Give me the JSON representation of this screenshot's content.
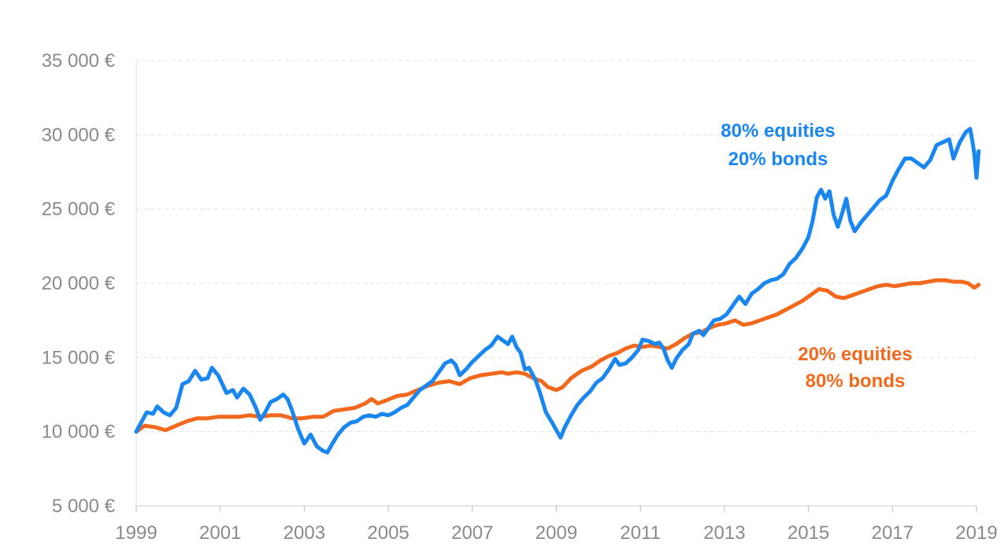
{
  "chart_data": {
    "type": "line",
    "title": "",
    "xlabel": "",
    "ylabel": "",
    "xlim": [
      1999,
      2019
    ],
    "ylim": [
      5000,
      35000
    ],
    "y_ticks": [
      5000,
      10000,
      15000,
      20000,
      25000,
      30000,
      35000
    ],
    "y_tick_labels": [
      "5 000 €",
      "10 000 €",
      "15 000 €",
      "20 000 €",
      "25 000 €",
      "30 000 €",
      "35 000 €"
    ],
    "x_ticks": [
      1999,
      2001,
      2003,
      2005,
      2007,
      2009,
      2011,
      2013,
      2015,
      2017,
      2019
    ],
    "x_tick_labels": [
      "1999",
      "2001",
      "2003",
      "2005",
      "2007",
      "2009",
      "2011",
      "2013",
      "2015",
      "2017",
      "2019"
    ],
    "grid": "horizontal dashed",
    "series": [
      {
        "label_lines": [
          "80% equities",
          "20% bonds"
        ],
        "color": "#1a86f0",
        "points": [
          [
            1999.0,
            10000
          ],
          [
            1999.25,
            11300
          ],
          [
            1999.4,
            11200
          ],
          [
            1999.5,
            11700
          ],
          [
            1999.65,
            11300
          ],
          [
            1999.8,
            11100
          ],
          [
            1999.95,
            11600
          ],
          [
            2000.1,
            13200
          ],
          [
            2000.25,
            13400
          ],
          [
            2000.4,
            14100
          ],
          [
            2000.55,
            13500
          ],
          [
            2000.7,
            13600
          ],
          [
            2000.8,
            14300
          ],
          [
            2000.95,
            13800
          ],
          [
            2001.05,
            13200
          ],
          [
            2001.15,
            12600
          ],
          [
            2001.3,
            12800
          ],
          [
            2001.4,
            12300
          ],
          [
            2001.55,
            12900
          ],
          [
            2001.7,
            12500
          ],
          [
            2001.85,
            11600
          ],
          [
            2001.95,
            10800
          ],
          [
            2002.05,
            11200
          ],
          [
            2002.2,
            12000
          ],
          [
            2002.35,
            12200
          ],
          [
            2002.5,
            12500
          ],
          [
            2002.6,
            12200
          ],
          [
            2002.7,
            11500
          ],
          [
            2002.85,
            10200
          ],
          [
            2003.0,
            9200
          ],
          [
            2003.15,
            9800
          ],
          [
            2003.3,
            9000
          ],
          [
            2003.45,
            8700
          ],
          [
            2003.55,
            8600
          ],
          [
            2003.65,
            9100
          ],
          [
            2003.8,
            9800
          ],
          [
            2003.95,
            10300
          ],
          [
            2004.1,
            10600
          ],
          [
            2004.25,
            10700
          ],
          [
            2004.4,
            11000
          ],
          [
            2004.55,
            11100
          ],
          [
            2004.7,
            11000
          ],
          [
            2004.85,
            11200
          ],
          [
            2005.0,
            11100
          ],
          [
            2005.15,
            11300
          ],
          [
            2005.3,
            11600
          ],
          [
            2005.45,
            11800
          ],
          [
            2005.6,
            12300
          ],
          [
            2005.75,
            12800
          ],
          [
            2005.9,
            13100
          ],
          [
            2006.05,
            13400
          ],
          [
            2006.2,
            14000
          ],
          [
            2006.35,
            14600
          ],
          [
            2006.5,
            14800
          ],
          [
            2006.6,
            14500
          ],
          [
            2006.7,
            13800
          ],
          [
            2006.85,
            14200
          ],
          [
            2007.0,
            14700
          ],
          [
            2007.15,
            15100
          ],
          [
            2007.3,
            15500
          ],
          [
            2007.45,
            15800
          ],
          [
            2007.6,
            16400
          ],
          [
            2007.7,
            16200
          ],
          [
            2007.85,
            15900
          ],
          [
            2007.95,
            16400
          ],
          [
            2008.05,
            15700
          ],
          [
            2008.15,
            15300
          ],
          [
            2008.25,
            14200
          ],
          [
            2008.35,
            14300
          ],
          [
            2008.5,
            13500
          ],
          [
            2008.6,
            12700
          ],
          [
            2008.75,
            11300
          ],
          [
            2008.9,
            10600
          ],
          [
            2009.0,
            10100
          ],
          [
            2009.1,
            9600
          ],
          [
            2009.2,
            10300
          ],
          [
            2009.35,
            11100
          ],
          [
            2009.5,
            11800
          ],
          [
            2009.65,
            12300
          ],
          [
            2009.8,
            12700
          ],
          [
            2009.95,
            13300
          ],
          [
            2010.1,
            13600
          ],
          [
            2010.25,
            14200
          ],
          [
            2010.4,
            14900
          ],
          [
            2010.5,
            14500
          ],
          [
            2010.65,
            14600
          ],
          [
            2010.8,
            15000
          ],
          [
            2010.95,
            15500
          ],
          [
            2011.05,
            16200
          ],
          [
            2011.2,
            16100
          ],
          [
            2011.35,
            15900
          ],
          [
            2011.45,
            16000
          ],
          [
            2011.55,
            15600
          ],
          [
            2011.65,
            14800
          ],
          [
            2011.75,
            14300
          ],
          [
            2011.85,
            14900
          ],
          [
            2012.0,
            15500
          ],
          [
            2012.15,
            15900
          ],
          [
            2012.25,
            16600
          ],
          [
            2012.4,
            16800
          ],
          [
            2012.5,
            16500
          ],
          [
            2012.6,
            16900
          ],
          [
            2012.75,
            17500
          ],
          [
            2012.9,
            17600
          ],
          [
            2013.05,
            17900
          ],
          [
            2013.2,
            18500
          ],
          [
            2013.35,
            19100
          ],
          [
            2013.5,
            18600
          ],
          [
            2013.65,
            19300
          ],
          [
            2013.8,
            19600
          ],
          [
            2013.95,
            20000
          ],
          [
            2014.1,
            20200
          ],
          [
            2014.25,
            20300
          ],
          [
            2014.4,
            20600
          ],
          [
            2014.55,
            21300
          ],
          [
            2014.7,
            21700
          ],
          [
            2014.85,
            22300
          ],
          [
            2015.0,
            23100
          ],
          [
            2015.1,
            24200
          ],
          [
            2015.2,
            25800
          ],
          [
            2015.3,
            26300
          ],
          [
            2015.4,
            25700
          ],
          [
            2015.5,
            26200
          ],
          [
            2015.6,
            24600
          ],
          [
            2015.7,
            23800
          ],
          [
            2015.8,
            24700
          ],
          [
            2015.9,
            25700
          ],
          [
            2016.0,
            24200
          ],
          [
            2016.1,
            23500
          ],
          [
            2016.25,
            24100
          ],
          [
            2016.4,
            24600
          ],
          [
            2016.55,
            25100
          ],
          [
            2016.7,
            25600
          ],
          [
            2016.85,
            25900
          ],
          [
            2017.0,
            26900
          ],
          [
            2017.15,
            27700
          ],
          [
            2017.3,
            28400
          ],
          [
            2017.45,
            28400
          ],
          [
            2017.6,
            28100
          ],
          [
            2017.75,
            27800
          ],
          [
            2017.9,
            28300
          ],
          [
            2018.05,
            29300
          ],
          [
            2018.2,
            29500
          ],
          [
            2018.35,
            29700
          ],
          [
            2018.45,
            28400
          ],
          [
            2018.6,
            29500
          ],
          [
            2018.75,
            30200
          ],
          [
            2018.85,
            30400
          ],
          [
            2018.9,
            29600
          ],
          [
            2018.95,
            28700
          ],
          [
            2019.0,
            27100
          ],
          [
            2019.05,
            28900
          ]
        ]
      },
      {
        "label_lines": [
          "20% equities",
          "80% bonds"
        ],
        "color": "#f2691e",
        "points": [
          [
            1999.0,
            10000
          ],
          [
            1999.2,
            10400
          ],
          [
            1999.45,
            10300
          ],
          [
            1999.7,
            10100
          ],
          [
            1999.95,
            10400
          ],
          [
            2000.2,
            10700
          ],
          [
            2000.45,
            10900
          ],
          [
            2000.7,
            10900
          ],
          [
            2000.95,
            11000
          ],
          [
            2001.2,
            11000
          ],
          [
            2001.45,
            11000
          ],
          [
            2001.7,
            11100
          ],
          [
            2001.95,
            11000
          ],
          [
            2002.2,
            11100
          ],
          [
            2002.45,
            11100
          ],
          [
            2002.7,
            10900
          ],
          [
            2002.95,
            10900
          ],
          [
            2003.2,
            11000
          ],
          [
            2003.45,
            11000
          ],
          [
            2003.7,
            11400
          ],
          [
            2003.95,
            11500
          ],
          [
            2004.2,
            11600
          ],
          [
            2004.45,
            11900
          ],
          [
            2004.6,
            12200
          ],
          [
            2004.75,
            11900
          ],
          [
            2004.95,
            12100
          ],
          [
            2005.2,
            12400
          ],
          [
            2005.45,
            12500
          ],
          [
            2005.7,
            12800
          ],
          [
            2005.95,
            13100
          ],
          [
            2006.2,
            13300
          ],
          [
            2006.45,
            13400
          ],
          [
            2006.7,
            13200
          ],
          [
            2006.95,
            13600
          ],
          [
            2007.2,
            13800
          ],
          [
            2007.45,
            13900
          ],
          [
            2007.7,
            14000
          ],
          [
            2007.85,
            13900
          ],
          [
            2008.05,
            14000
          ],
          [
            2008.25,
            13900
          ],
          [
            2008.45,
            13600
          ],
          [
            2008.65,
            13400
          ],
          [
            2008.8,
            13000
          ],
          [
            2009.0,
            12800
          ],
          [
            2009.15,
            13000
          ],
          [
            2009.35,
            13600
          ],
          [
            2009.6,
            14100
          ],
          [
            2009.85,
            14400
          ],
          [
            2010.05,
            14800
          ],
          [
            2010.25,
            15100
          ],
          [
            2010.45,
            15300
          ],
          [
            2010.65,
            15600
          ],
          [
            2010.85,
            15800
          ],
          [
            2011.05,
            15700
          ],
          [
            2011.25,
            15800
          ],
          [
            2011.45,
            15700
          ],
          [
            2011.65,
            15600
          ],
          [
            2011.85,
            15900
          ],
          [
            2012.05,
            16300
          ],
          [
            2012.25,
            16600
          ],
          [
            2012.45,
            16700
          ],
          [
            2012.65,
            17000
          ],
          [
            2012.85,
            17200
          ],
          [
            2013.05,
            17300
          ],
          [
            2013.25,
            17500
          ],
          [
            2013.45,
            17200
          ],
          [
            2013.65,
            17300
          ],
          [
            2013.85,
            17500
          ],
          [
            2014.05,
            17700
          ],
          [
            2014.25,
            17900
          ],
          [
            2014.45,
            18200
          ],
          [
            2014.65,
            18500
          ],
          [
            2014.85,
            18800
          ],
          [
            2015.05,
            19200
          ],
          [
            2015.25,
            19600
          ],
          [
            2015.45,
            19500
          ],
          [
            2015.65,
            19100
          ],
          [
            2015.85,
            19000
          ],
          [
            2016.05,
            19200
          ],
          [
            2016.25,
            19400
          ],
          [
            2016.45,
            19600
          ],
          [
            2016.65,
            19800
          ],
          [
            2016.85,
            19900
          ],
          [
            2017.05,
            19800
          ],
          [
            2017.25,
            19900
          ],
          [
            2017.45,
            20000
          ],
          [
            2017.65,
            20000
          ],
          [
            2017.85,
            20100
          ],
          [
            2018.05,
            20200
          ],
          [
            2018.25,
            20200
          ],
          [
            2018.45,
            20100
          ],
          [
            2018.65,
            20100
          ],
          [
            2018.8,
            20000
          ],
          [
            2018.95,
            19700
          ],
          [
            2019.05,
            19900
          ]
        ]
      }
    ]
  }
}
